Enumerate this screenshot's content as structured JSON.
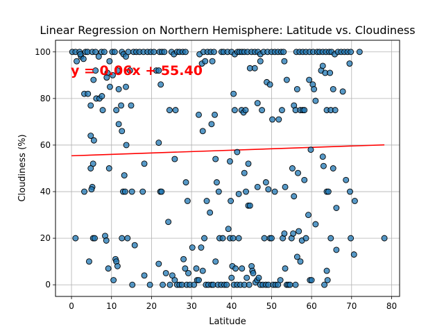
{
  "chart_data": {
    "type": "scatter",
    "title": "Linear Regression on Northern Hemisphere: Latitude vs. Cloudiness",
    "xlabel": "Latitude",
    "ylabel": "Cloudiness (%)",
    "xlim": [
      -4,
      82
    ],
    "ylim": [
      -5,
      105
    ],
    "xticks": [
      0,
      10,
      20,
      30,
      40,
      50,
      60,
      70,
      80
    ],
    "yticks": [
      0,
      20,
      40,
      60,
      80,
      100
    ],
    "grid": true,
    "annotation": "y = 0.06x + 55.40",
    "regression": {
      "slope": 0.06,
      "intercept": 55.4,
      "x_range": [
        0.0,
        78.2
      ]
    },
    "colors": {
      "points": "#1f77b4",
      "line": "#ff0000",
      "annotation": "#ff0000",
      "grid": "#b0b0b0"
    },
    "points": [
      [
        0.2,
        100
      ],
      [
        1.0,
        100
      ],
      [
        2.0,
        100
      ],
      [
        2.4,
        98
      ],
      [
        3.0,
        97
      ],
      [
        1.3,
        96
      ],
      [
        2.2,
        99
      ],
      [
        3.5,
        100
      ],
      [
        4.0,
        100
      ],
      [
        5.2,
        100
      ],
      [
        6.0,
        100
      ],
      [
        6.8,
        98
      ],
      [
        7.5,
        100
      ],
      [
        8.2,
        100
      ],
      [
        9.0,
        91
      ],
      [
        9.5,
        96
      ],
      [
        10.2,
        100
      ],
      [
        10.8,
        100
      ],
      [
        11.5,
        92
      ],
      [
        12.6,
        100
      ],
      [
        13.0,
        99
      ],
      [
        13.6,
        98
      ],
      [
        14.2,
        100
      ],
      [
        14.6,
        92
      ],
      [
        15.5,
        100
      ],
      [
        16.2,
        100
      ],
      [
        17.0,
        100
      ],
      [
        18.0,
        100
      ],
      [
        19.0,
        100
      ],
      [
        19.8,
        100
      ],
      [
        20.6,
        100
      ],
      [
        21.2,
        92
      ],
      [
        22.0,
        100
      ],
      [
        22.6,
        100
      ],
      [
        23.2,
        100
      ],
      [
        25.0,
        100
      ],
      [
        25.6,
        99
      ],
      [
        26.4,
        100
      ],
      [
        27.0,
        100
      ],
      [
        27.8,
        100
      ],
      [
        28.5,
        100
      ],
      [
        32.0,
        99
      ],
      [
        33.0,
        100
      ],
      [
        34.0,
        100
      ],
      [
        34.8,
        100
      ],
      [
        35.6,
        100
      ],
      [
        37.5,
        100
      ],
      [
        38.0,
        100
      ],
      [
        39.0,
        100
      ],
      [
        40.0,
        100
      ],
      [
        40.8,
        99
      ],
      [
        41.5,
        100
      ],
      [
        42.0,
        100
      ],
      [
        42.6,
        100
      ],
      [
        43.2,
        100
      ],
      [
        44.0,
        100
      ],
      [
        45.0,
        100
      ],
      [
        45.8,
        100
      ],
      [
        46.6,
        100
      ],
      [
        47.2,
        99
      ],
      [
        48.0,
        100
      ],
      [
        49.0,
        100
      ],
      [
        50.0,
        100
      ],
      [
        50.8,
        100
      ],
      [
        51.6,
        100
      ],
      [
        52.4,
        100
      ],
      [
        53.0,
        100
      ],
      [
        56.2,
        100
      ],
      [
        57.0,
        100
      ],
      [
        57.8,
        100
      ],
      [
        58.6,
        100
      ],
      [
        59.5,
        100
      ],
      [
        60.4,
        100
      ],
      [
        61.4,
        100
      ],
      [
        62.0,
        100
      ],
      [
        62.8,
        100
      ],
      [
        63.6,
        100
      ],
      [
        64.4,
        100
      ],
      [
        65.0,
        100
      ],
      [
        65.8,
        99
      ],
      [
        66.6,
        100
      ],
      [
        67.4,
        100
      ],
      [
        68.2,
        100
      ],
      [
        69.0,
        100
      ],
      [
        69.8,
        100
      ],
      [
        72.0,
        100
      ],
      [
        69.5,
        95
      ],
      [
        3.2,
        82
      ],
      [
        4.1,
        82
      ],
      [
        4.8,
        77
      ],
      [
        5.5,
        88
      ],
      [
        6.0,
        92
      ],
      [
        6.2,
        80
      ],
      [
        7.0,
        80
      ],
      [
        7.6,
        81
      ],
      [
        7.8,
        75
      ],
      [
        8.8,
        89
      ],
      [
        9.6,
        85
      ],
      [
        10.3,
        90
      ],
      [
        11.2,
        75
      ],
      [
        11.8,
        84
      ],
      [
        12.4,
        77
      ],
      [
        13.6,
        85
      ],
      [
        14.9,
        77
      ],
      [
        21.8,
        92
      ],
      [
        22.3,
        86
      ],
      [
        24.5,
        75
      ],
      [
        26.0,
        75
      ],
      [
        32.6,
        95
      ],
      [
        33.4,
        96
      ],
      [
        35.2,
        96
      ],
      [
        40.5,
        82
      ],
      [
        40.8,
        75
      ],
      [
        42.5,
        75
      ],
      [
        43.0,
        74
      ],
      [
        43.5,
        75
      ],
      [
        44.6,
        93
      ],
      [
        45.8,
        93
      ],
      [
        46.5,
        78
      ],
      [
        47.2,
        96
      ],
      [
        47.6,
        75
      ],
      [
        48.8,
        87
      ],
      [
        49.6,
        86
      ],
      [
        50.2,
        71
      ],
      [
        51.8,
        71
      ],
      [
        52.6,
        75
      ],
      [
        53.2,
        96
      ],
      [
        53.8,
        88
      ],
      [
        55.6,
        77
      ],
      [
        56.0,
        75
      ],
      [
        56.4,
        84
      ],
      [
        57.2,
        75
      ],
      [
        57.8,
        75
      ],
      [
        58.2,
        75
      ],
      [
        59.4,
        88
      ],
      [
        60.3,
        86
      ],
      [
        60.6,
        84
      ],
      [
        61.0,
        79
      ],
      [
        62.4,
        92
      ],
      [
        62.8,
        94
      ],
      [
        63.4,
        91
      ],
      [
        63.8,
        75
      ],
      [
        64.6,
        91
      ],
      [
        64.8,
        75
      ],
      [
        65.4,
        84
      ],
      [
        65.9,
        75
      ],
      [
        67.8,
        83
      ],
      [
        4.8,
        64
      ],
      [
        5.6,
        62
      ],
      [
        5.4,
        52
      ],
      [
        4.8,
        50
      ],
      [
        5.2,
        42
      ],
      [
        5.0,
        41
      ],
      [
        3.2,
        40
      ],
      [
        9.4,
        50
      ],
      [
        11.8,
        69
      ],
      [
        12.6,
        66
      ],
      [
        13.2,
        47
      ],
      [
        13.7,
        60
      ],
      [
        12.9,
        40
      ],
      [
        13.4,
        40
      ],
      [
        15.1,
        40
      ],
      [
        17.8,
        40
      ],
      [
        18.2,
        52
      ],
      [
        21.8,
        61
      ],
      [
        22.2,
        40
      ],
      [
        22.5,
        40
      ],
      [
        25.8,
        54
      ],
      [
        28.6,
        44
      ],
      [
        29.0,
        36
      ],
      [
        31.8,
        73
      ],
      [
        32.8,
        66
      ],
      [
        33.8,
        36
      ],
      [
        34.6,
        31
      ],
      [
        35.0,
        69
      ],
      [
        35.8,
        73
      ],
      [
        36.0,
        54
      ],
      [
        36.3,
        44
      ],
      [
        36.8,
        40
      ],
      [
        39.6,
        53
      ],
      [
        39.8,
        36
      ],
      [
        41.4,
        57
      ],
      [
        41.8,
        39
      ],
      [
        43.2,
        48
      ],
      [
        43.6,
        40
      ],
      [
        44.2,
        34
      ],
      [
        44.6,
        34
      ],
      [
        44.2,
        52
      ],
      [
        46.5,
        42
      ],
      [
        48.6,
        44
      ],
      [
        49.2,
        41
      ],
      [
        50.8,
        40
      ],
      [
        53.4,
        42
      ],
      [
        55.2,
        50
      ],
      [
        55.6,
        38
      ],
      [
        56.6,
        48
      ],
      [
        58.2,
        45
      ],
      [
        59.2,
        30
      ],
      [
        59.8,
        58
      ],
      [
        61.0,
        26
      ],
      [
        62.8,
        55
      ],
      [
        63.0,
        51
      ],
      [
        63.8,
        40
      ],
      [
        64.2,
        40
      ],
      [
        65.4,
        50
      ],
      [
        66.2,
        33
      ],
      [
        68.6,
        45
      ],
      [
        69.6,
        40
      ],
      [
        70.8,
        36
      ],
      [
        1.0,
        20
      ],
      [
        4.4,
        10
      ],
      [
        5.4,
        20
      ],
      [
        5.8,
        20
      ],
      [
        8.4,
        21
      ],
      [
        8.7,
        19
      ],
      [
        9.2,
        7
      ],
      [
        10.5,
        2
      ],
      [
        11.0,
        11
      ],
      [
        11.2,
        10
      ],
      [
        11.5,
        8
      ],
      [
        12.6,
        20
      ],
      [
        14.0,
        20
      ],
      [
        15.2,
        0
      ],
      [
        15.8,
        17
      ],
      [
        18.2,
        4
      ],
      [
        19.6,
        0
      ],
      [
        21.8,
        9
      ],
      [
        22.8,
        0
      ],
      [
        23.6,
        5
      ],
      [
        24.2,
        27
      ],
      [
        24.6,
        0
      ],
      [
        25.2,
        4
      ],
      [
        25.8,
        2
      ],
      [
        26.4,
        0
      ],
      [
        27.0,
        0
      ],
      [
        27.6,
        0
      ],
      [
        28.0,
        11
      ],
      [
        28.4,
        7
      ],
      [
        28.8,
        0
      ],
      [
        29.2,
        5
      ],
      [
        29.6,
        0
      ],
      [
        30.2,
        16
      ],
      [
        30.6,
        0
      ],
      [
        31.2,
        7
      ],
      [
        31.4,
        2
      ],
      [
        31.8,
        2
      ],
      [
        32.4,
        16
      ],
      [
        32.8,
        6
      ],
      [
        33.2,
        20
      ],
      [
        33.6,
        0
      ],
      [
        34.2,
        0
      ],
      [
        35.0,
        0
      ],
      [
        35.4,
        0
      ],
      [
        36.0,
        10
      ],
      [
        36.6,
        0
      ],
      [
        37.0,
        20
      ],
      [
        37.4,
        0
      ],
      [
        37.8,
        20
      ],
      [
        38.2,
        0
      ],
      [
        38.8,
        0
      ],
      [
        39.2,
        24
      ],
      [
        39.6,
        20
      ],
      [
        40.0,
        3
      ],
      [
        40.2,
        8
      ],
      [
        40.4,
        20
      ],
      [
        40.6,
        0
      ],
      [
        41.0,
        7
      ],
      [
        41.4,
        0
      ],
      [
        41.8,
        20
      ],
      [
        42.2,
        0
      ],
      [
        42.6,
        7
      ],
      [
        43.2,
        0
      ],
      [
        43.8,
        3
      ],
      [
        44.4,
        0
      ],
      [
        45.0,
        8
      ],
      [
        45.2,
        6
      ],
      [
        45.4,
        5
      ],
      [
        46.0,
        1
      ],
      [
        46.4,
        2
      ],
      [
        46.8,
        3
      ],
      [
        47.2,
        0
      ],
      [
        47.8,
        0
      ],
      [
        48.2,
        20
      ],
      [
        48.6,
        0
      ],
      [
        49.2,
        0
      ],
      [
        49.6,
        20
      ],
      [
        50.0,
        20
      ],
      [
        50.4,
        0
      ],
      [
        51.0,
        0
      ],
      [
        51.6,
        0
      ],
      [
        52.2,
        2
      ],
      [
        52.8,
        20
      ],
      [
        53.2,
        22
      ],
      [
        53.4,
        7
      ],
      [
        53.8,
        0
      ],
      [
        54.2,
        0
      ],
      [
        54.6,
        0
      ],
      [
        55.0,
        20
      ],
      [
        55.4,
        22
      ],
      [
        56.0,
        0
      ],
      [
        56.4,
        12
      ],
      [
        56.8,
        23
      ],
      [
        57.2,
        10
      ],
      [
        57.6,
        19
      ],
      [
        58.6,
        20
      ],
      [
        59.6,
        2
      ],
      [
        60.0,
        2
      ],
      [
        63.2,
        0
      ],
      [
        63.8,
        6
      ],
      [
        64.0,
        2
      ],
      [
        64.8,
        20
      ],
      [
        66.2,
        15
      ],
      [
        69.8,
        20
      ],
      [
        70.6,
        13
      ],
      [
        78.2,
        20
      ]
    ]
  }
}
